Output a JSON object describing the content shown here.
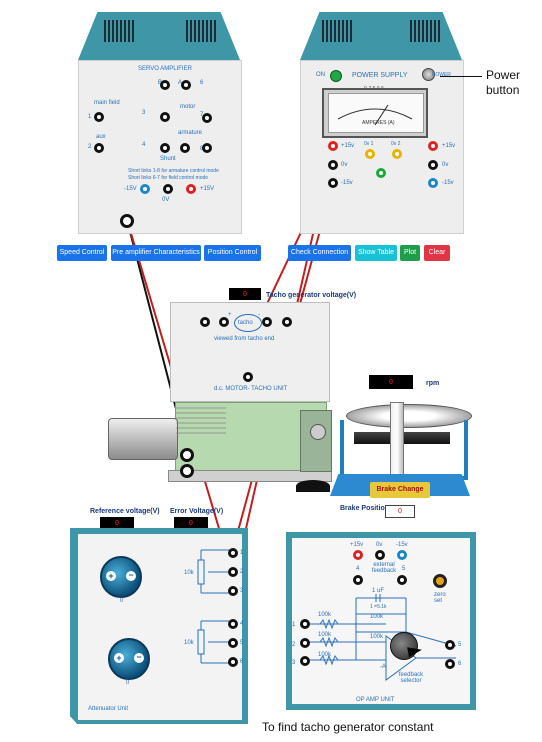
{
  "servo_amplifier": {
    "title": "SERVO AMPLIFIER",
    "labels": {
      "main_field": "main field",
      "aux": "aux",
      "motor": "motor",
      "armature": "armature",
      "shunt": "Shunt",
      "note_line1": "Short links 1-8 for armature control mode",
      "note_line2": "Short links 6-7 for field control mode",
      "neg_15v": "-15V",
      "zero_v": "0V",
      "pos_15v": "+15V",
      "t_a": "A",
      "t_b": "B",
      "t_1": "1",
      "t_2": "2",
      "t_3": "3",
      "t_4": "4",
      "t_5": "5",
      "t_6": "6",
      "t_7": "7",
      "t_8": "8"
    }
  },
  "power_supply": {
    "title": "POWER SUPPLY",
    "on_label": "ON",
    "power_label": "POWER",
    "meter_scale": "0-2.5  0-5",
    "meter_caption": "AMPERES  (A)",
    "labels": {
      "pos_15v": "+15v",
      "zero_v": "0v",
      "neg_15v": "-15v",
      "r_pos_15v": "+15v",
      "r_zero_v": "0v",
      "r_neg_15v": "-15v",
      "mid1": "0v 1",
      "mid2": "0v 2"
    }
  },
  "annotation": {
    "power_button_line1": "Power",
    "power_button_line2": "button"
  },
  "buttons_left": [
    {
      "label": "Speed Control",
      "color": "#1a73e8"
    },
    {
      "label": "Pre amplifier Characteristics",
      "color": "#1a73e8"
    },
    {
      "label": "Position Control",
      "color": "#1a73e8"
    }
  ],
  "buttons_right": [
    {
      "label": "Check Connection",
      "color": "#1a73e8"
    },
    {
      "label": "Show Table",
      "color": "#17c1d6"
    },
    {
      "label": "Plot",
      "color": "#1e9e4a"
    },
    {
      "label": "Clear",
      "color": "#e03545"
    }
  ],
  "tacho": {
    "display_value": "0",
    "display_label": "Tacho generator voltage(V)",
    "tacho_label": "tacho",
    "viewed_label": "viewed from tacho end",
    "unit_label": "d.c. MOTOR- TACHO UNIT",
    "t_plus": "+",
    "t_minus": "-"
  },
  "rpm": {
    "display_value": "0",
    "unit": "rpm"
  },
  "brake": {
    "button_label": "Brake Change",
    "position_label": "Brake Position",
    "position_value": "0"
  },
  "attenuator": {
    "ref_label": "Reference voltage(V)",
    "ref_value": "0",
    "err_label": "Error Voltage(V)",
    "err_value": "0",
    "knob1_value": "0",
    "knob2_value": "0",
    "pot1": "10k",
    "pot2": "10k",
    "unit_label": "Attenuator Unit",
    "t1": "1",
    "t2": "2",
    "t3": "3",
    "t4": "4",
    "t5": "5",
    "t6": "6"
  },
  "opamp": {
    "pos_15v": "+15v",
    "zero_v": "0v",
    "neg_15v": "-15v",
    "ext_fb": "external feedback",
    "t4": "4",
    "t5": "5",
    "t6": "6",
    "i1": "1",
    "i2": "2",
    "i3": "3",
    "cap": "1 uF",
    "r_fb": "1 =5.1k",
    "r100_a": "100k",
    "r100_b": "100k",
    "r100_c": "100k",
    "r100_d": "100k",
    "r100_e": "100k",
    "zero_set": "zero set",
    "fb_selector": "feedback selector",
    "amp_minus": "-A",
    "unit_label": "OP AMP UNIT"
  },
  "caption": "To find tacho generator constant"
}
